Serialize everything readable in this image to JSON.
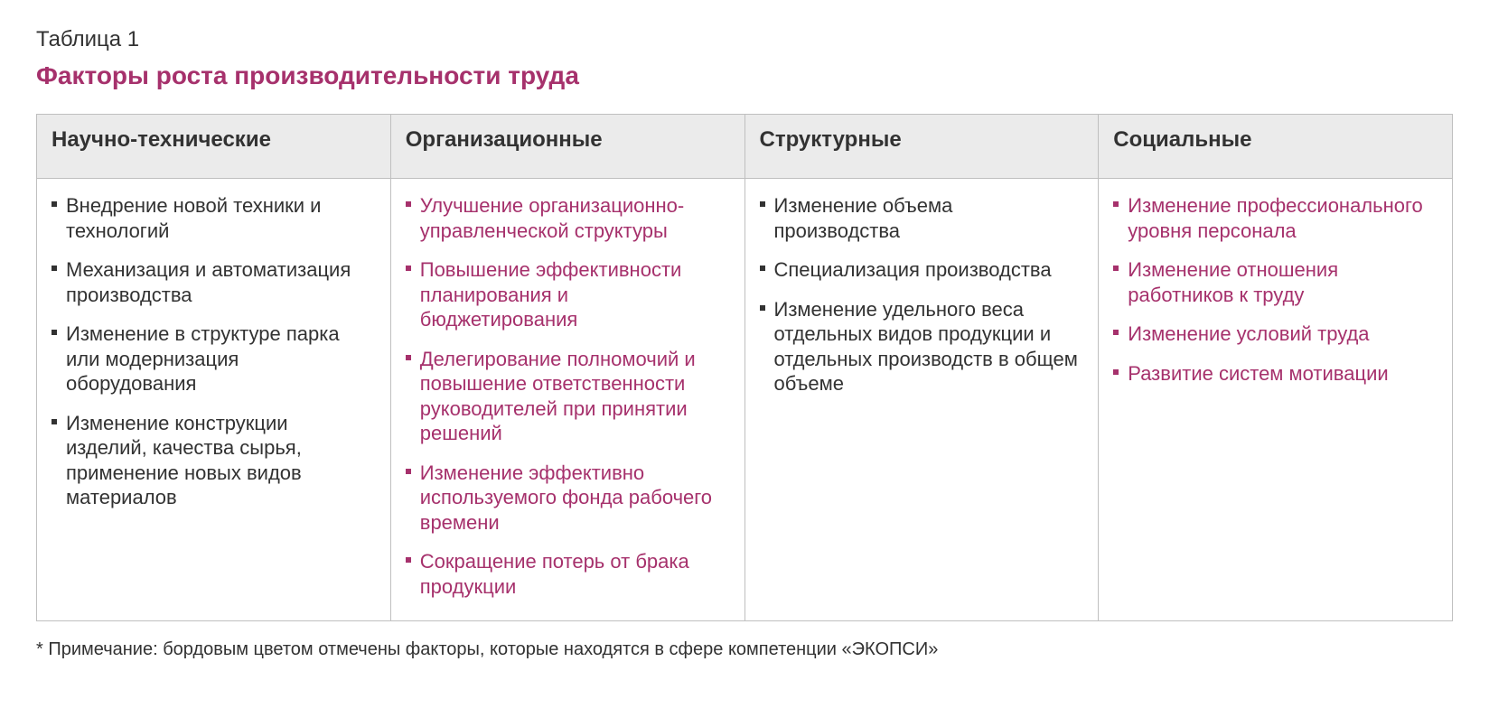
{
  "colors": {
    "text_default": "#323232",
    "text_accent": "#a6316c",
    "header_bg": "#ebebeb",
    "border": "#bfbfbf",
    "page_bg": "#ffffff"
  },
  "typography": {
    "font_family": "Arial",
    "label_fontsize_pt": 18,
    "title_fontsize_pt": 21,
    "header_fontsize_pt": 18,
    "body_fontsize_pt": 16,
    "footnote_fontsize_pt": 15
  },
  "table": {
    "type": "table",
    "label": "Таблица 1",
    "title": "Факторы роста производительности труда",
    "title_color": "#a6316c",
    "columns": [
      {
        "header": "Научно-технические",
        "items": [
          {
            "text": "Внедрение новой техники и технологий",
            "accent": false
          },
          {
            "text": "Механизация и автоматизация производства",
            "accent": false
          },
          {
            "text": "Изменение в структуре парка или модернизация оборудования",
            "accent": false
          },
          {
            "text": "Изменение конструкции изделий, качества сырья, применение новых видов материалов",
            "accent": false
          }
        ]
      },
      {
        "header": "Организационные",
        "items": [
          {
            "text": "Улучшение организационно-управленческой структуры",
            "accent": true
          },
          {
            "text": "Повышение эффективности планирования и бюджетирования",
            "accent": true
          },
          {
            "text": "Делегирование полномочий и повышение ответственности руководителей при принятии решений",
            "accent": true
          },
          {
            "text": "Изменение эффективно используемого фонда рабочего времени",
            "accent": true
          },
          {
            "text": "Сокращение потерь от брака продукции",
            "accent": true
          }
        ]
      },
      {
        "header": "Структурные",
        "items": [
          {
            "text": "Изменение объема производства",
            "accent": false
          },
          {
            "text": "Специализация производства",
            "accent": false
          },
          {
            "text": "Изменение удельного веса отдельных видов продукции и отдельных производств в общем объеме",
            "accent": false
          }
        ]
      },
      {
        "header": "Социальные",
        "items": [
          {
            "text": "Изменение профессионального уровня персонала",
            "accent": true
          },
          {
            "text": "Изменение отношения работников к труду",
            "accent": true
          },
          {
            "text": "Изменение условий труда",
            "accent": true
          },
          {
            "text": "Развитие систем мотивации",
            "accent": true
          }
        ]
      }
    ],
    "footnote": "* Примечание: бордовым цветом отмечены факторы, которые находятся в сфере компетенции «ЭКОПСИ»"
  }
}
